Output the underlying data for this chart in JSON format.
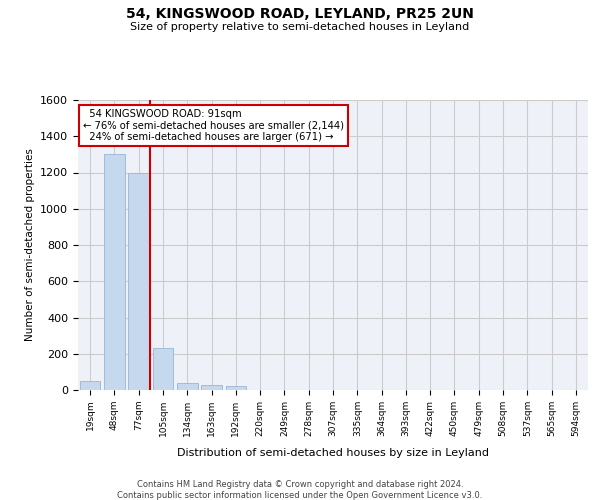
{
  "title1": "54, KINGSWOOD ROAD, LEYLAND, PR25 2UN",
  "title2": "Size of property relative to semi-detached houses in Leyland",
  "xlabel": "Distribution of semi-detached houses by size in Leyland",
  "ylabel": "Number of semi-detached properties",
  "footer1": "Contains HM Land Registry data © Crown copyright and database right 2024.",
  "footer2": "Contains public sector information licensed under the Open Government Licence v3.0.",
  "bin_labels": [
    "19sqm",
    "48sqm",
    "77sqm",
    "105sqm",
    "134sqm",
    "163sqm",
    "192sqm",
    "220sqm",
    "249sqm",
    "278sqm",
    "307sqm",
    "335sqm",
    "364sqm",
    "393sqm",
    "422sqm",
    "450sqm",
    "479sqm",
    "508sqm",
    "537sqm",
    "565sqm",
    "594sqm"
  ],
  "bar_values": [
    50,
    1300,
    1200,
    230,
    40,
    25,
    20,
    0,
    0,
    0,
    0,
    0,
    0,
    0,
    0,
    0,
    0,
    0,
    0,
    0,
    0
  ],
  "bar_color": "#c5d8ed",
  "bar_edgecolor": "#a0bcd8",
  "property_sqm": 91,
  "property_bin_index": 2,
  "property_label": "54 KINGSWOOD ROAD: 91sqm",
  "pct_smaller": 76,
  "n_smaller": 2144,
  "pct_larger": 24,
  "n_larger": 671,
  "vline_color": "#cc0000",
  "annotation_box_color": "#cc0000",
  "ylim": [
    0,
    1600
  ],
  "yticks": [
    0,
    200,
    400,
    600,
    800,
    1000,
    1200,
    1400,
    1600
  ],
  "grid_color": "#cccccc",
  "background_color": "#ffffff",
  "plot_bg_color": "#eef2f8"
}
